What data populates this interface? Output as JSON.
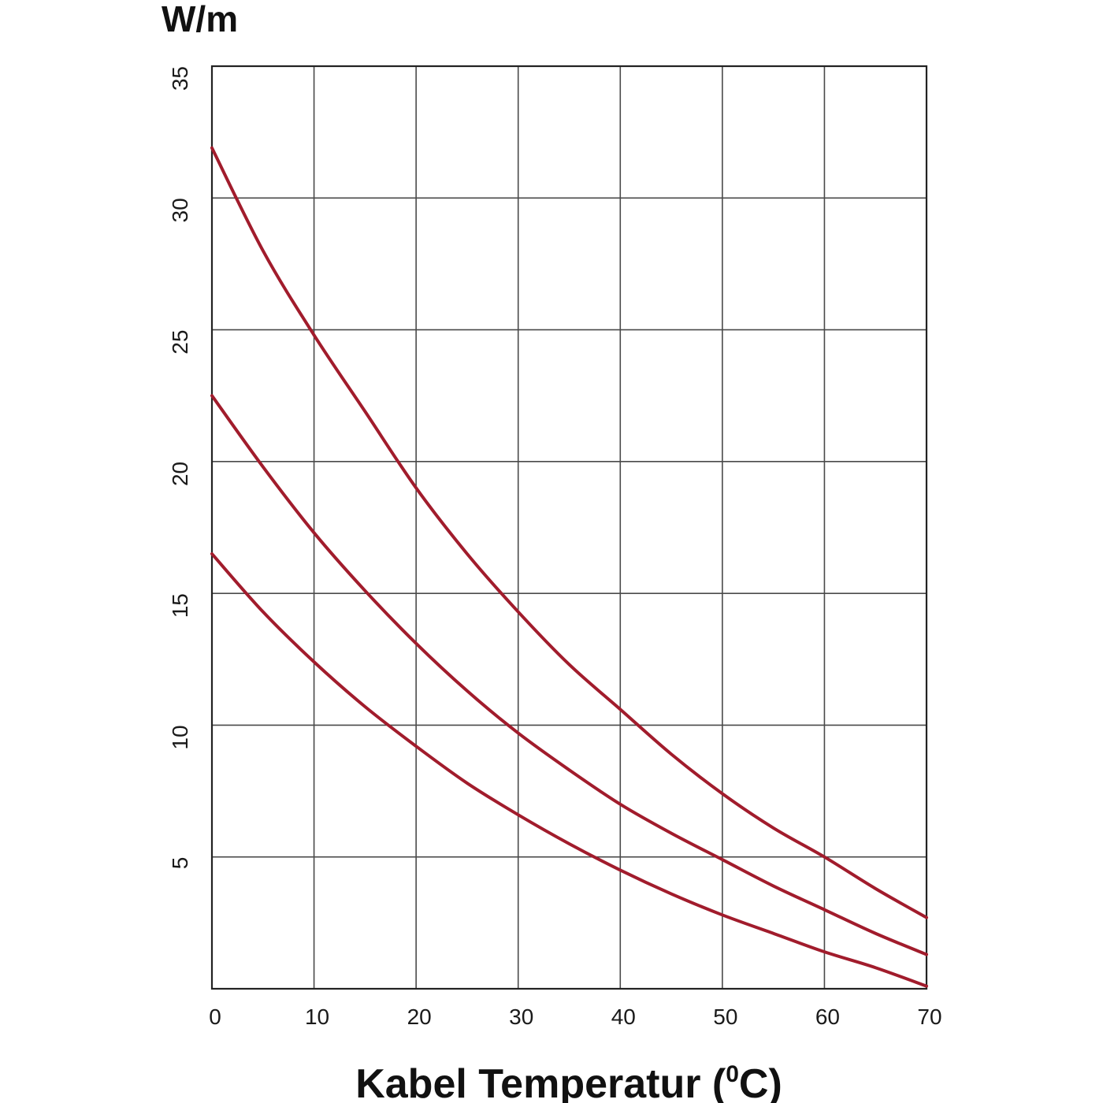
{
  "chart_data": {
    "type": "line",
    "title": "",
    "ylabel": "W/m",
    "xlabel": {
      "text": "Kabel Temperatur (",
      "superscript": "0",
      "after": "C)"
    },
    "xlim": [
      0,
      70
    ],
    "ylim": [
      0,
      35
    ],
    "x_ticks": [
      "0",
      "10",
      "20",
      "30",
      "40",
      "50",
      "60",
      "70"
    ],
    "y_ticks": [
      "5",
      "10",
      "15",
      "20",
      "25",
      "30",
      "35"
    ],
    "grid": true,
    "legend": "none",
    "line_color": "#a11c2c",
    "x": [
      0,
      5,
      10,
      15,
      20,
      25,
      30,
      35,
      40,
      45,
      50,
      55,
      60,
      65,
      70
    ],
    "series": [
      {
        "values": [
          31.9,
          28.0,
          24.8,
          21.9,
          19.0,
          16.5,
          14.3,
          12.3,
          10.6,
          8.9,
          7.4,
          6.1,
          5.0,
          3.8,
          2.7
        ]
      },
      {
        "values": [
          22.5,
          19.8,
          17.3,
          15.1,
          13.1,
          11.3,
          9.7,
          8.3,
          7.0,
          5.9,
          4.9,
          3.9,
          3.0,
          2.1,
          1.3
        ]
      },
      {
        "values": [
          16.5,
          14.3,
          12.4,
          10.7,
          9.2,
          7.8,
          6.6,
          5.5,
          4.5,
          3.6,
          2.8,
          2.1,
          1.4,
          0.8,
          0.1
        ]
      }
    ]
  }
}
